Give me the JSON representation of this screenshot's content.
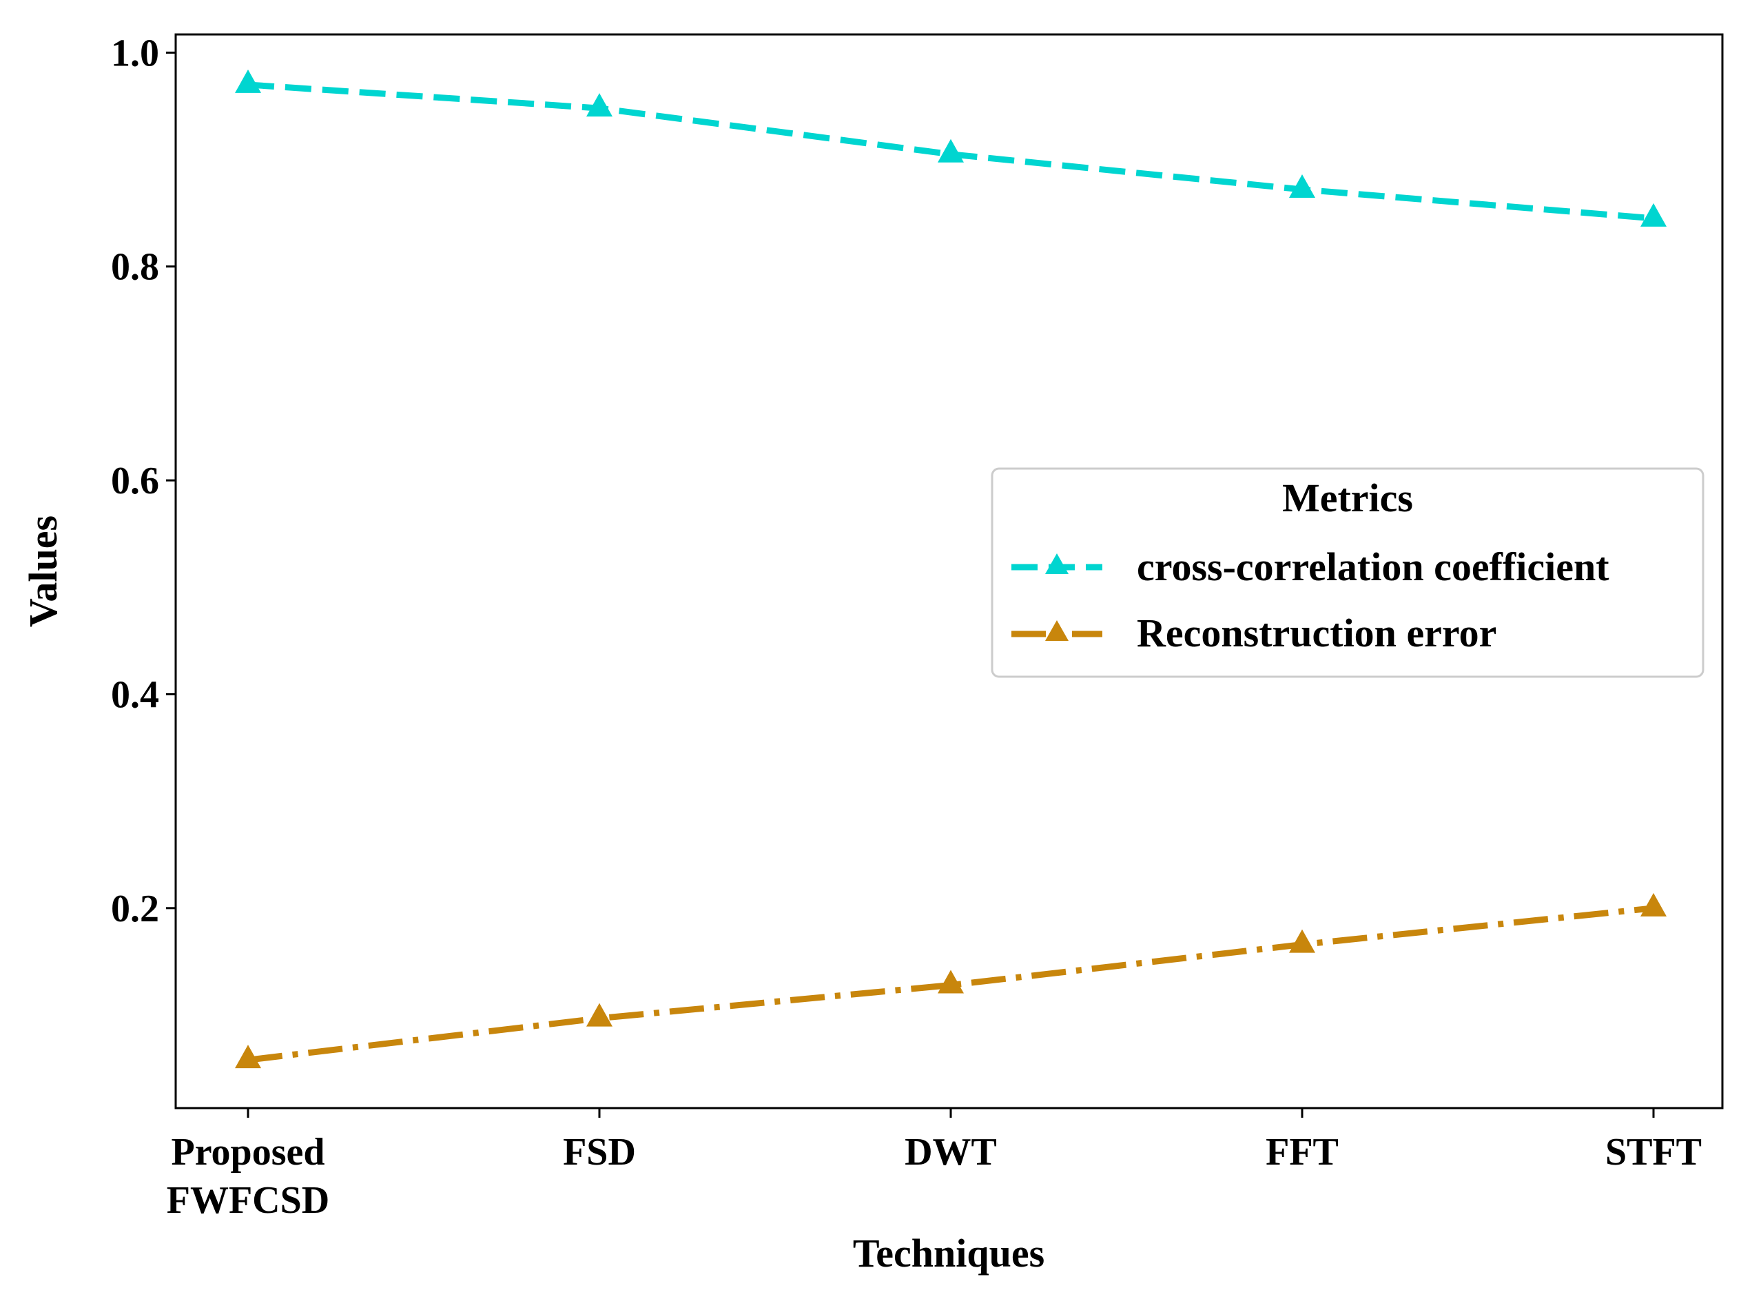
{
  "chart_data": {
    "type": "line",
    "title": "",
    "xlabel": "Techniques",
    "ylabel": "Values",
    "categories": [
      [
        "Proposed",
        "FWFCSD"
      ],
      [
        "FSD"
      ],
      [
        "DWT"
      ],
      [
        "FFT"
      ],
      [
        "STFT"
      ]
    ],
    "yticks": [
      "0.2",
      "0.4",
      "0.6",
      "0.8",
      "1.0"
    ],
    "ylim": [
      0.013,
      1.017
    ],
    "grid": false,
    "legend": {
      "title": "Metrics",
      "placement": "center-right"
    },
    "series": [
      {
        "name": "cross-correlation coefficient",
        "values": [
          0.97,
          0.948,
          0.905,
          0.872,
          0.845
        ],
        "color": "#00D5D0",
        "line_style": "dashed",
        "marker": "triangle"
      },
      {
        "name": "Reconstruction error",
        "values": [
          0.058,
          0.097,
          0.128,
          0.166,
          0.2
        ],
        "color": "#C8860C",
        "line_style": "dashdot",
        "marker": "triangle"
      }
    ]
  }
}
